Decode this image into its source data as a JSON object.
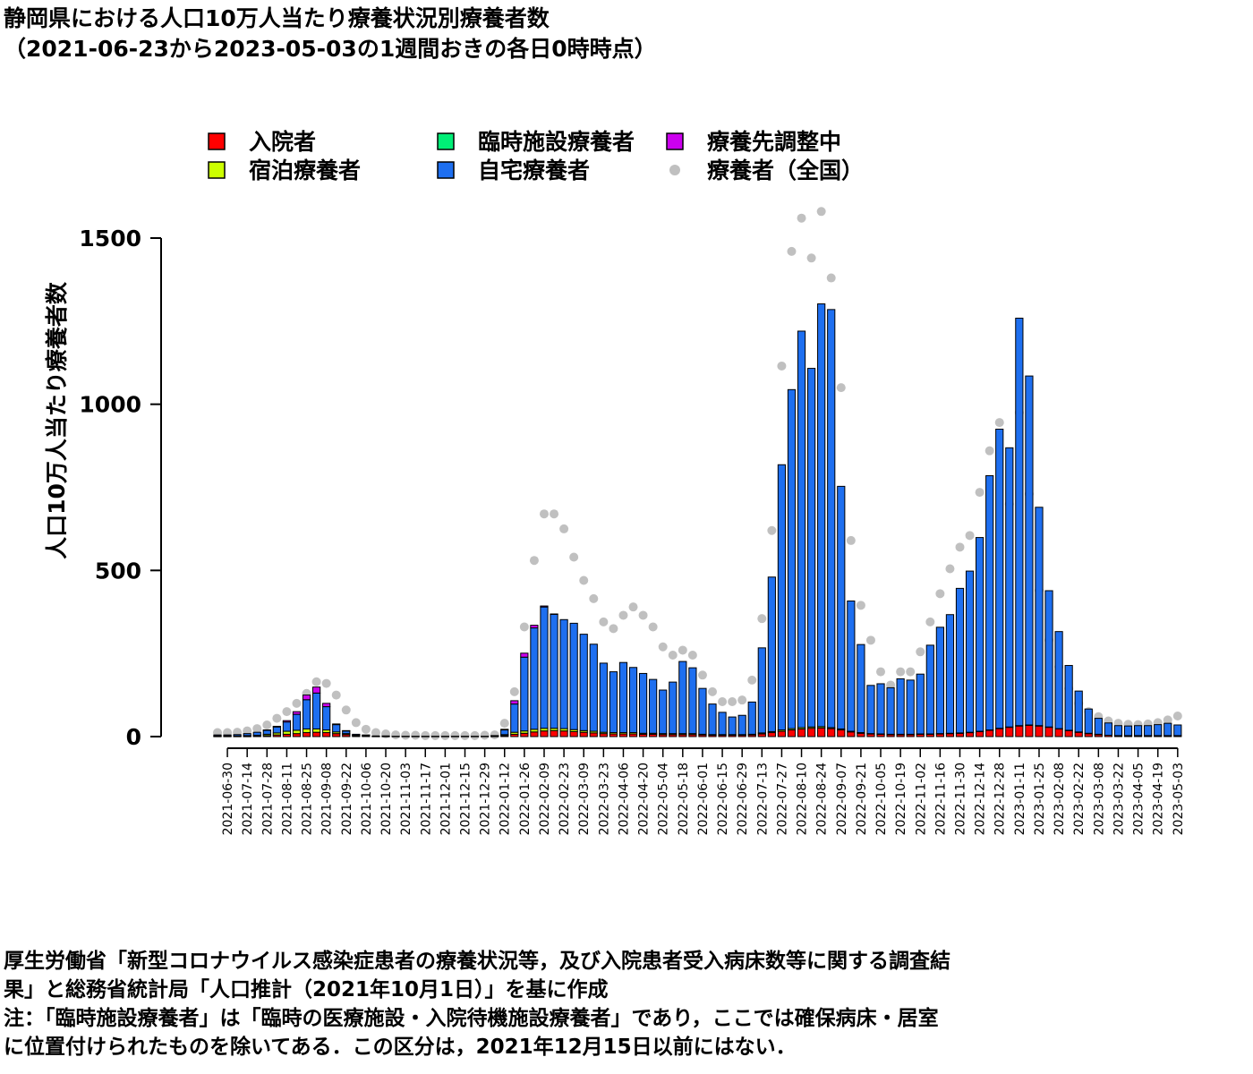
{
  "title": {
    "line1": "静岡県における人口10万人当たり療養状況別療養者数",
    "line2": "（2021-06-23から2023-05-03の1週間おきの各日0時時点）"
  },
  "notes": [
    "厚生労働省「新型コロナウイルス感染症患者の療養状況等，及び入院患者受入病床数等に関する調査結",
    "果」と総務省統計局「人口推計（2021年10月1日）」を基に作成",
    "注：「臨時施設療養者」は「臨時の医療施設・入院待機施設療養者」であり，ここでは確保病床・居室",
    "に位置付けられたものを除いてある．この区分は，2021年12月15日以前にはない．"
  ],
  "chart_data": {
    "type": "bar",
    "stacked": true,
    "ylabel": "人口10万人当たり療養者数",
    "ylim": [
      0,
      1500
    ],
    "yticks": [
      0,
      500,
      1000,
      1500
    ],
    "legend_position": "top",
    "dates": [
      "2021-06-23",
      "2021-06-30",
      "2021-07-07",
      "2021-07-14",
      "2021-07-21",
      "2021-07-28",
      "2021-08-04",
      "2021-08-11",
      "2021-08-18",
      "2021-08-25",
      "2021-09-01",
      "2021-09-08",
      "2021-09-15",
      "2021-09-22",
      "2021-09-29",
      "2021-10-06",
      "2021-10-13",
      "2021-10-20",
      "2021-10-27",
      "2021-11-03",
      "2021-11-10",
      "2021-11-17",
      "2021-11-24",
      "2021-12-01",
      "2021-12-08",
      "2021-12-15",
      "2021-12-22",
      "2021-12-29",
      "2022-01-05",
      "2022-01-12",
      "2022-01-19",
      "2022-01-26",
      "2022-02-02",
      "2022-02-09",
      "2022-02-16",
      "2022-02-23",
      "2022-03-02",
      "2022-03-09",
      "2022-03-16",
      "2022-03-23",
      "2022-03-30",
      "2022-04-06",
      "2022-04-13",
      "2022-04-20",
      "2022-04-27",
      "2022-05-04",
      "2022-05-11",
      "2022-05-18",
      "2022-05-25",
      "2022-06-01",
      "2022-06-08",
      "2022-06-15",
      "2022-06-22",
      "2022-06-29",
      "2022-07-06",
      "2022-07-13",
      "2022-07-20",
      "2022-07-27",
      "2022-08-03",
      "2022-08-10",
      "2022-08-17",
      "2022-08-24",
      "2022-08-31",
      "2022-09-07",
      "2022-09-14",
      "2022-09-21",
      "2022-09-28",
      "2022-10-05",
      "2022-10-12",
      "2022-10-19",
      "2022-10-26",
      "2022-11-02",
      "2022-11-09",
      "2022-11-16",
      "2022-11-23",
      "2022-11-30",
      "2022-12-07",
      "2022-12-14",
      "2022-12-21",
      "2022-12-28",
      "2023-01-04",
      "2023-01-11",
      "2023-01-18",
      "2023-01-25",
      "2023-02-01",
      "2023-02-08",
      "2023-02-15",
      "2023-02-22",
      "2023-03-01",
      "2023-03-08",
      "2023-03-15",
      "2023-03-22",
      "2023-03-29",
      "2023-04-05",
      "2023-04-12",
      "2023-04-19",
      "2023-04-26",
      "2023-05-03"
    ],
    "x_tick_labels": [
      "2021-06-30",
      "2021-07-14",
      "2021-07-28",
      "2021-08-11",
      "2021-08-25",
      "2021-09-08",
      "2021-09-22",
      "2021-10-06",
      "2021-10-20",
      "2021-11-03",
      "2021-11-17",
      "2021-12-01",
      "2021-12-15",
      "2021-12-29",
      "2022-01-12",
      "2022-01-26",
      "2022-02-09",
      "2022-02-23",
      "2022-03-09",
      "2022-03-23",
      "2022-04-06",
      "2022-04-20",
      "2022-05-04",
      "2022-05-18",
      "2022-06-01",
      "2022-06-15",
      "2022-06-29",
      "2022-07-13",
      "2022-07-27",
      "2022-08-10",
      "2022-08-24",
      "2022-09-07",
      "2022-09-21",
      "2022-10-05",
      "2022-10-19",
      "2022-11-02",
      "2022-11-16",
      "2022-11-30",
      "2022-12-14",
      "2022-12-28",
      "2023-01-11",
      "2023-01-25",
      "2023-02-08",
      "2023-02-22",
      "2023-03-08",
      "2023-03-22",
      "2023-04-05",
      "2023-04-19",
      "2023-05-03"
    ],
    "series": [
      {
        "name": "入院者",
        "color": "#ff0000",
        "values": [
          1,
          1,
          1,
          1,
          2,
          3,
          5,
          7,
          9,
          12,
          13,
          12,
          9,
          6,
          3,
          2,
          1,
          1,
          0,
          0,
          0,
          0,
          0,
          0,
          0,
          0,
          0,
          0,
          1,
          3,
          7,
          10,
          14,
          17,
          18,
          17,
          15,
          13,
          11,
          9,
          8,
          8,
          8,
          7,
          7,
          6,
          6,
          6,
          6,
          5,
          4,
          4,
          4,
          4,
          5,
          8,
          12,
          16,
          20,
          23,
          25,
          26,
          24,
          20,
          14,
          10,
          8,
          7,
          6,
          6,
          6,
          7,
          7,
          8,
          9,
          10,
          12,
          15,
          19,
          24,
          28,
          32,
          34,
          32,
          28,
          23,
          18,
          13,
          9,
          6,
          4,
          3,
          3,
          3,
          3,
          3,
          3,
          3
        ]
      },
      {
        "name": "宿泊療養者",
        "color": "#ccff00",
        "values": [
          1,
          1,
          1,
          2,
          2,
          4,
          6,
          9,
          10,
          11,
          10,
          8,
          5,
          3,
          1,
          1,
          0,
          0,
          0,
          0,
          0,
          0,
          0,
          0,
          0,
          0,
          0,
          0,
          1,
          3,
          6,
          7,
          8,
          8,
          7,
          7,
          6,
          5,
          5,
          4,
          4,
          4,
          4,
          3,
          3,
          3,
          3,
          3,
          3,
          2,
          2,
          2,
          2,
          2,
          2,
          3,
          3,
          4,
          4,
          4,
          4,
          4,
          3,
          3,
          2,
          2,
          1,
          1,
          1,
          1,
          1,
          1,
          1,
          1,
          1,
          1,
          1,
          1,
          1,
          1,
          1,
          1,
          1,
          1,
          1,
          1,
          1,
          1,
          1,
          1,
          0,
          0,
          0,
          0,
          0,
          0,
          0,
          0
        ]
      },
      {
        "name": "臨時施設療養者",
        "color": "#00ee76",
        "values": [
          0,
          0,
          0,
          0,
          0,
          0,
          0,
          0,
          0,
          0,
          0,
          0,
          0,
          0,
          0,
          0,
          0,
          0,
          0,
          0,
          0,
          0,
          0,
          0,
          0,
          0,
          0,
          0,
          0,
          0,
          0,
          0,
          0,
          0,
          0,
          0,
          0,
          0,
          0,
          0,
          0,
          0,
          0,
          0,
          0,
          0,
          0,
          0,
          0,
          0,
          0,
          0,
          0,
          0,
          0,
          0,
          0,
          0,
          0,
          0,
          0,
          0,
          0,
          0,
          0,
          0,
          0,
          0,
          0,
          0,
          0,
          0,
          0,
          0,
          0,
          0,
          0,
          0,
          0,
          0,
          0,
          0,
          0,
          0,
          0,
          0,
          0,
          0,
          0,
          0,
          0,
          0,
          0,
          0,
          0,
          0,
          0,
          0
        ]
      },
      {
        "name": "自宅療養者",
        "color": "#1e6ff0",
        "values": [
          3,
          3,
          4,
          6,
          9,
          12,
          18,
          28,
          48,
          88,
          108,
          70,
          22,
          8,
          3,
          2,
          1,
          1,
          1,
          1,
          1,
          1,
          1,
          1,
          1,
          1,
          1,
          1,
          1,
          14,
          85,
          222,
          305,
          365,
          343,
          328,
          320,
          290,
          262,
          208,
          183,
          211,
          196,
          180,
          162,
          131,
          155,
          217,
          198,
          138,
          92,
          67,
          53,
          58,
          97,
          256,
          465,
          798,
          1020,
          1193,
          1079,
          1272,
          1258,
          730,
          392,
          265,
          145,
          151,
          140,
          167,
          163,
          180,
          267,
          320,
          357,
          435,
          485,
          583,
          765,
          900,
          840,
          1226,
          1050,
          657,
          410,
          292,
          195,
          123,
          73,
          48,
          37,
          30,
          29,
          30,
          30,
          33,
          37,
          32
        ]
      },
      {
        "name": "療養先調整中",
        "color": "#cc00ee",
        "values": [
          0,
          0,
          0,
          0,
          0,
          1,
          2,
          4,
          8,
          14,
          18,
          10,
          2,
          1,
          0,
          0,
          0,
          0,
          0,
          0,
          0,
          0,
          0,
          0,
          0,
          0,
          0,
          0,
          0,
          2,
          10,
          12,
          8,
          3,
          1,
          0,
          0,
          0,
          0,
          0,
          0,
          0,
          0,
          0,
          0,
          0,
          0,
          0,
          0,
          0,
          0,
          0,
          0,
          0,
          0,
          0,
          0,
          0,
          0,
          0,
          0,
          0,
          0,
          0,
          0,
          0,
          0,
          0,
          0,
          0,
          0,
          0,
          0,
          0,
          0,
          0,
          0,
          0,
          0,
          0,
          0,
          0,
          0,
          0,
          0,
          0,
          0,
          0,
          0,
          0,
          0,
          0,
          0,
          0,
          0,
          0,
          0,
          0
        ]
      }
    ],
    "national": {
      "name": "療養者（全国）",
      "color": "#c0c0c0",
      "values": [
        12,
        12,
        13,
        17,
        24,
        35,
        55,
        75,
        100,
        130,
        165,
        160,
        125,
        80,
        42,
        22,
        12,
        8,
        5,
        4,
        4,
        3,
        3,
        3,
        3,
        3,
        3,
        4,
        5,
        40,
        135,
        330,
        530,
        670,
        670,
        625,
        540,
        470,
        415,
        345,
        325,
        365,
        390,
        365,
        330,
        270,
        245,
        260,
        245,
        185,
        135,
        105,
        105,
        110,
        170,
        355,
        620,
        1115,
        1460,
        1560,
        1440,
        1580,
        1380,
        1050,
        590,
        395,
        290,
        195,
        155,
        195,
        195,
        255,
        345,
        430,
        505,
        570,
        605,
        735,
        860,
        945,
        700,
        975,
        730,
        440,
        290,
        210,
        145,
        100,
        75,
        60,
        47,
        40,
        37,
        36,
        38,
        42,
        50,
        62
      ]
    }
  }
}
